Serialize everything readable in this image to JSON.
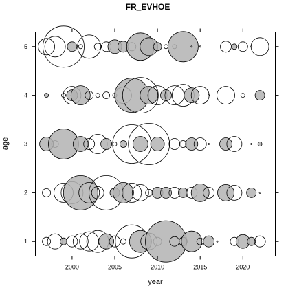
{
  "chart_data": {
    "type": "scatter",
    "title": "FR_EVHOE",
    "xlabel": "year",
    "ylabel": "age",
    "xlim": [
      1995.7,
      2023.8
    ],
    "ylim": [
      0.7,
      5.3
    ],
    "x_ticks": [
      2000,
      2005,
      2010,
      2015,
      2020
    ],
    "y_ticks": [
      1,
      2,
      3,
      4,
      5
    ],
    "grid": false,
    "legend": "none",
    "marker": "bubble",
    "colors": {
      "positive": "#b3b3b3",
      "negative": "#ffffff",
      "stroke": "#000000"
    },
    "points": [
      {
        "year": 1997,
        "age": 5,
        "size": 12,
        "sign": "neg"
      },
      {
        "year": 1998,
        "age": 5,
        "size": 15,
        "sign": "neg"
      },
      {
        "year": 1999,
        "age": 5,
        "size": 30,
        "sign": "neg"
      },
      {
        "year": 2000,
        "age": 5,
        "size": 7,
        "sign": "pos"
      },
      {
        "year": 2001,
        "age": 5,
        "size": 3,
        "sign": "neg"
      },
      {
        "year": 2002,
        "age": 5,
        "size": 17,
        "sign": "neg"
      },
      {
        "year": 2003,
        "age": 5,
        "size": 5,
        "sign": "neg"
      },
      {
        "year": 2004,
        "age": 5,
        "size": 7,
        "sign": "neg"
      },
      {
        "year": 2005,
        "age": 5,
        "size": 10,
        "sign": "pos"
      },
      {
        "year": 2006,
        "age": 5,
        "size": 8,
        "sign": "pos"
      },
      {
        "year": 2007,
        "age": 5,
        "size": 6,
        "sign": "neg"
      },
      {
        "year": 2008,
        "age": 5,
        "size": 20,
        "sign": "pos"
      },
      {
        "year": 2009,
        "age": 5,
        "size": 13,
        "sign": "pos"
      },
      {
        "year": 2010,
        "age": 5,
        "size": 6,
        "sign": "pos"
      },
      {
        "year": 2011,
        "age": 5,
        "size": 3,
        "sign": "neg"
      },
      {
        "year": 2012,
        "age": 5,
        "size": 3,
        "sign": "neg"
      },
      {
        "year": 2013,
        "age": 5,
        "size": 22,
        "sign": "pos"
      },
      {
        "year": 2014,
        "age": 5,
        "size": 1,
        "sign": "neg"
      },
      {
        "year": 2015,
        "age": 5,
        "size": 1,
        "sign": "neg"
      },
      {
        "year": 2018,
        "age": 5,
        "size": 8,
        "sign": "neg"
      },
      {
        "year": 2019,
        "age": 5,
        "size": 4,
        "sign": "pos"
      },
      {
        "year": 2020,
        "age": 5,
        "size": 7,
        "sign": "neg"
      },
      {
        "year": 2021,
        "age": 5,
        "size": 1,
        "sign": "neg"
      },
      {
        "year": 2022,
        "age": 5,
        "size": 13,
        "sign": "neg"
      },
      {
        "year": 1997,
        "age": 4,
        "size": 3,
        "sign": "pos"
      },
      {
        "year": 1999,
        "age": 4,
        "size": 3,
        "sign": "neg"
      },
      {
        "year": 2000,
        "age": 4,
        "size": 8,
        "sign": "pos"
      },
      {
        "year": 2000,
        "age": 4,
        "size": 13,
        "sign": "neg"
      },
      {
        "year": 2001,
        "age": 4,
        "size": 14,
        "sign": "pos"
      },
      {
        "year": 2002,
        "age": 4,
        "size": 6,
        "sign": "neg"
      },
      {
        "year": 2003,
        "age": 4,
        "size": 3,
        "sign": "neg"
      },
      {
        "year": 2004,
        "age": 4,
        "size": 5,
        "sign": "neg"
      },
      {
        "year": 2005,
        "age": 4,
        "size": 3,
        "sign": "neg"
      },
      {
        "year": 2006,
        "age": 4,
        "size": 12,
        "sign": "neg"
      },
      {
        "year": 2007,
        "age": 4,
        "size": 25,
        "sign": "pos"
      },
      {
        "year": 2008,
        "age": 4,
        "size": 26,
        "sign": "neg"
      },
      {
        "year": 2009,
        "age": 4,
        "size": 13,
        "sign": "pos"
      },
      {
        "year": 2010,
        "age": 4,
        "size": 14,
        "sign": "neg"
      },
      {
        "year": 2011,
        "age": 4,
        "size": 8,
        "sign": "pos"
      },
      {
        "year": 2012,
        "age": 4,
        "size": 14,
        "sign": "neg"
      },
      {
        "year": 2013,
        "age": 4,
        "size": 16,
        "sign": "neg"
      },
      {
        "year": 2014,
        "age": 4,
        "size": 11,
        "sign": "pos"
      },
      {
        "year": 2015,
        "age": 4,
        "size": 13,
        "sign": "neg"
      },
      {
        "year": 2016,
        "age": 4,
        "size": 1,
        "sign": "neg"
      },
      {
        "year": 2018,
        "age": 4,
        "size": 13,
        "sign": "neg"
      },
      {
        "year": 2020,
        "age": 4,
        "size": 3,
        "sign": "neg"
      },
      {
        "year": 2022,
        "age": 4,
        "size": 7,
        "sign": "pos"
      },
      {
        "year": 1997,
        "age": 3,
        "size": 10,
        "sign": "pos"
      },
      {
        "year": 1998,
        "age": 3,
        "size": 5,
        "sign": "neg"
      },
      {
        "year": 1999,
        "age": 3,
        "size": 22,
        "sign": "pos"
      },
      {
        "year": 2001,
        "age": 3,
        "size": 11,
        "sign": "pos"
      },
      {
        "year": 2002,
        "age": 3,
        "size": 8,
        "sign": "neg"
      },
      {
        "year": 2003,
        "age": 3,
        "size": 14,
        "sign": "neg"
      },
      {
        "year": 2004,
        "age": 3,
        "size": 8,
        "sign": "pos"
      },
      {
        "year": 2005,
        "age": 3,
        "size": 3,
        "sign": "neg"
      },
      {
        "year": 2006,
        "age": 3,
        "size": 5,
        "sign": "pos"
      },
      {
        "year": 2007,
        "age": 3,
        "size": 28,
        "sign": "neg"
      },
      {
        "year": 2008,
        "age": 3,
        "size": 11,
        "sign": "pos"
      },
      {
        "year": 2009,
        "age": 3,
        "size": 30,
        "sign": "neg"
      },
      {
        "year": 2010,
        "age": 3,
        "size": 10,
        "sign": "pos"
      },
      {
        "year": 2012,
        "age": 3,
        "size": 8,
        "sign": "neg"
      },
      {
        "year": 2013,
        "age": 3,
        "size": 5,
        "sign": "neg"
      },
      {
        "year": 2014,
        "age": 3,
        "size": 9,
        "sign": "pos"
      },
      {
        "year": 2015,
        "age": 3,
        "size": 9,
        "sign": "neg"
      },
      {
        "year": 2016,
        "age": 3,
        "size": 1,
        "sign": "neg"
      },
      {
        "year": 2018,
        "age": 3,
        "size": 9,
        "sign": "pos"
      },
      {
        "year": 2019,
        "age": 3,
        "size": 11,
        "sign": "neg"
      },
      {
        "year": 2021,
        "age": 3,
        "size": 1,
        "sign": "neg"
      },
      {
        "year": 2022,
        "age": 3,
        "size": 3,
        "sign": "pos"
      },
      {
        "year": 1997,
        "age": 2,
        "size": 6,
        "sign": "neg"
      },
      {
        "year": 1999,
        "age": 2,
        "size": 14,
        "sign": "neg"
      },
      {
        "year": 2000,
        "age": 2,
        "size": 16,
        "sign": "neg"
      },
      {
        "year": 2001,
        "age": 2,
        "size": 25,
        "sign": "pos"
      },
      {
        "year": 2002,
        "age": 2,
        "size": 15,
        "sign": "neg"
      },
      {
        "year": 2003,
        "age": 2,
        "size": 9,
        "sign": "neg"
      },
      {
        "year": 2004,
        "age": 2,
        "size": 25,
        "sign": "neg"
      },
      {
        "year": 2005,
        "age": 2,
        "size": 7,
        "sign": "pos"
      },
      {
        "year": 2006,
        "age": 2,
        "size": 15,
        "sign": "pos"
      },
      {
        "year": 2007,
        "age": 2,
        "size": 14,
        "sign": "neg"
      },
      {
        "year": 2008,
        "age": 2,
        "size": 12,
        "sign": "neg"
      },
      {
        "year": 2009,
        "age": 2,
        "size": 5,
        "sign": "neg"
      },
      {
        "year": 2010,
        "age": 2,
        "size": 8,
        "sign": "pos"
      },
      {
        "year": 2011,
        "age": 2,
        "size": 8,
        "sign": "pos"
      },
      {
        "year": 2012,
        "age": 2,
        "size": 8,
        "sign": "neg"
      },
      {
        "year": 2013,
        "age": 2,
        "size": 7,
        "sign": "pos"
      },
      {
        "year": 2014,
        "age": 2,
        "size": 8,
        "sign": "neg"
      },
      {
        "year": 2015,
        "age": 2,
        "size": 13,
        "sign": "pos"
      },
      {
        "year": 2016,
        "age": 2,
        "size": 8,
        "sign": "neg"
      },
      {
        "year": 2018,
        "age": 2,
        "size": 12,
        "sign": "pos"
      },
      {
        "year": 2019,
        "age": 2,
        "size": 11,
        "sign": "neg"
      },
      {
        "year": 2021,
        "age": 2,
        "size": 7,
        "sign": "pos"
      },
      {
        "year": 2022,
        "age": 2,
        "size": 1,
        "sign": "neg"
      },
      {
        "year": 1997,
        "age": 1,
        "size": 6,
        "sign": "neg"
      },
      {
        "year": 1998,
        "age": 1,
        "size": 11,
        "sign": "neg"
      },
      {
        "year": 1999,
        "age": 1,
        "size": 5,
        "sign": "pos"
      },
      {
        "year": 2000,
        "age": 1,
        "size": 8,
        "sign": "neg"
      },
      {
        "year": 2001,
        "age": 1,
        "size": 11,
        "sign": "neg"
      },
      {
        "year": 2002,
        "age": 1,
        "size": 14,
        "sign": "neg"
      },
      {
        "year": 2003,
        "age": 1,
        "size": 16,
        "sign": "neg"
      },
      {
        "year": 2004,
        "age": 1,
        "size": 11,
        "sign": "pos"
      },
      {
        "year": 2005,
        "age": 1,
        "size": 8,
        "sign": "neg"
      },
      {
        "year": 2006,
        "age": 1,
        "size": 4,
        "sign": "neg"
      },
      {
        "year": 2007,
        "age": 1,
        "size": 24,
        "sign": "neg"
      },
      {
        "year": 2008,
        "age": 1,
        "size": 16,
        "sign": "pos"
      },
      {
        "year": 2009,
        "age": 1,
        "size": 12,
        "sign": "neg"
      },
      {
        "year": 2010,
        "age": 1,
        "size": 6,
        "sign": "neg"
      },
      {
        "year": 2011,
        "age": 1,
        "size": 30,
        "sign": "pos"
      },
      {
        "year": 2012,
        "age": 1,
        "size": 7,
        "sign": "neg"
      },
      {
        "year": 2013,
        "age": 1,
        "size": 6,
        "sign": "neg"
      },
      {
        "year": 2014,
        "age": 1,
        "size": 15,
        "sign": "pos"
      },
      {
        "year": 2015,
        "age": 1,
        "size": 5,
        "sign": "neg"
      },
      {
        "year": 2016,
        "age": 1,
        "size": 8,
        "sign": "pos"
      },
      {
        "year": 2017,
        "age": 1,
        "size": 1,
        "sign": "neg"
      },
      {
        "year": 2019,
        "age": 1,
        "size": 6,
        "sign": "neg"
      },
      {
        "year": 2020,
        "age": 1,
        "size": 10,
        "sign": "pos"
      },
      {
        "year": 2021,
        "age": 1,
        "size": 6,
        "sign": "pos"
      },
      {
        "year": 2022,
        "age": 1,
        "size": 8,
        "sign": "neg"
      }
    ]
  }
}
